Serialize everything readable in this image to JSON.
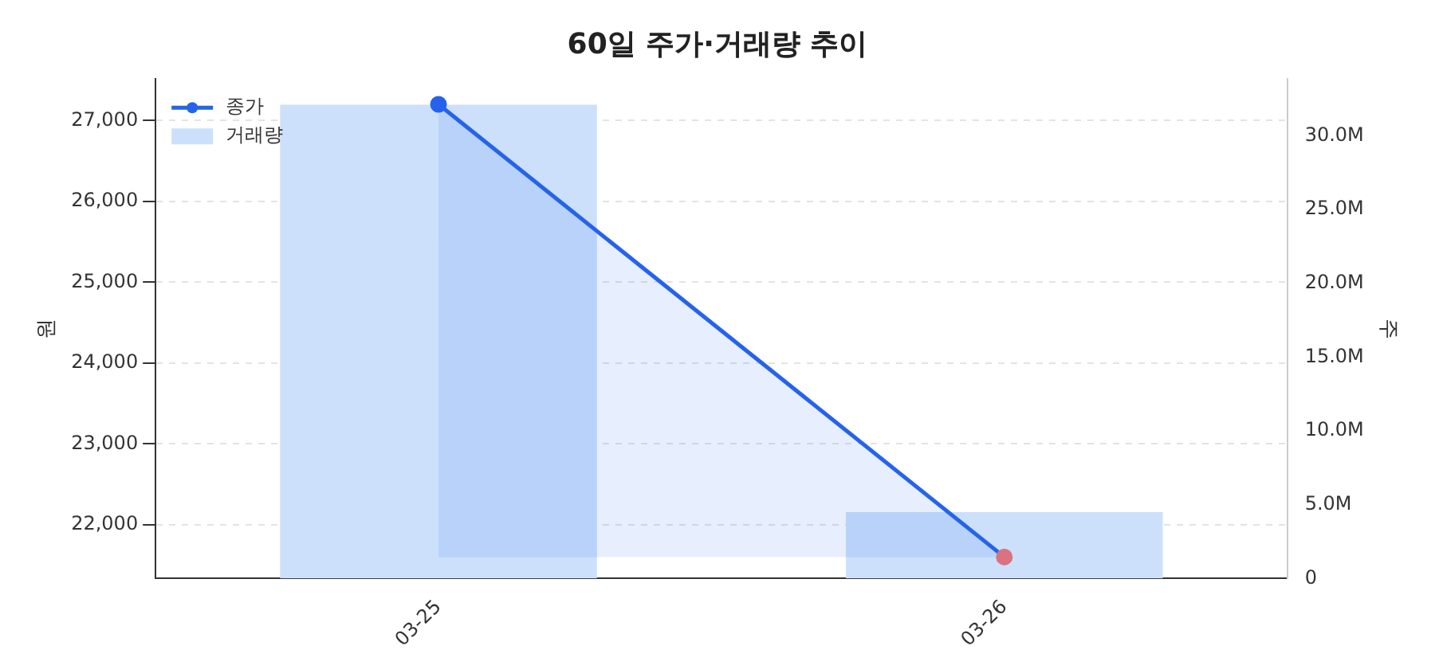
{
  "chart_data": {
    "type": "bar",
    "title": "60일 주가·거래량 추이",
    "categories": [
      "03-25",
      "03-26"
    ],
    "series": [
      {
        "name": "종가",
        "type": "area",
        "color": "#2563eb",
        "colors": [
          "#2563eb",
          "#d9737f"
        ],
        "values": [
          27200,
          21600
        ]
      },
      {
        "name": "거래량",
        "axis": "y2",
        "color": "#cce0fc",
        "values": [
          32100000,
          4500000
        ]
      }
    ],
    "ylabel": "원",
    "y2label": "주",
    "ylim": [
      21335,
      27513
    ],
    "yticks": [
      {
        "value": 22000,
        "label": "22,000"
      },
      {
        "value": 23000,
        "label": "23,000"
      },
      {
        "value": 24000,
        "label": "24,000"
      },
      {
        "value": 25000,
        "label": "25,000"
      },
      {
        "value": 26000,
        "label": "26,000"
      },
      {
        "value": 27000,
        "label": "27,000"
      }
    ],
    "y2lim": [
      0,
      33850000
    ],
    "y2ticks": [
      {
        "value": 0,
        "label": "0"
      },
      {
        "value": 5000000,
        "label": "5.0M"
      },
      {
        "value": 10000000,
        "label": "10.0M"
      },
      {
        "value": 15000000,
        "label": "15.0M"
      },
      {
        "value": 20000000,
        "label": "20.0M"
      },
      {
        "value": 25000000,
        "label": "25.0M"
      },
      {
        "value": 30000000,
        "label": "30.0M"
      }
    ],
    "grid": "y",
    "legend": "top left",
    "marker": "circle"
  }
}
